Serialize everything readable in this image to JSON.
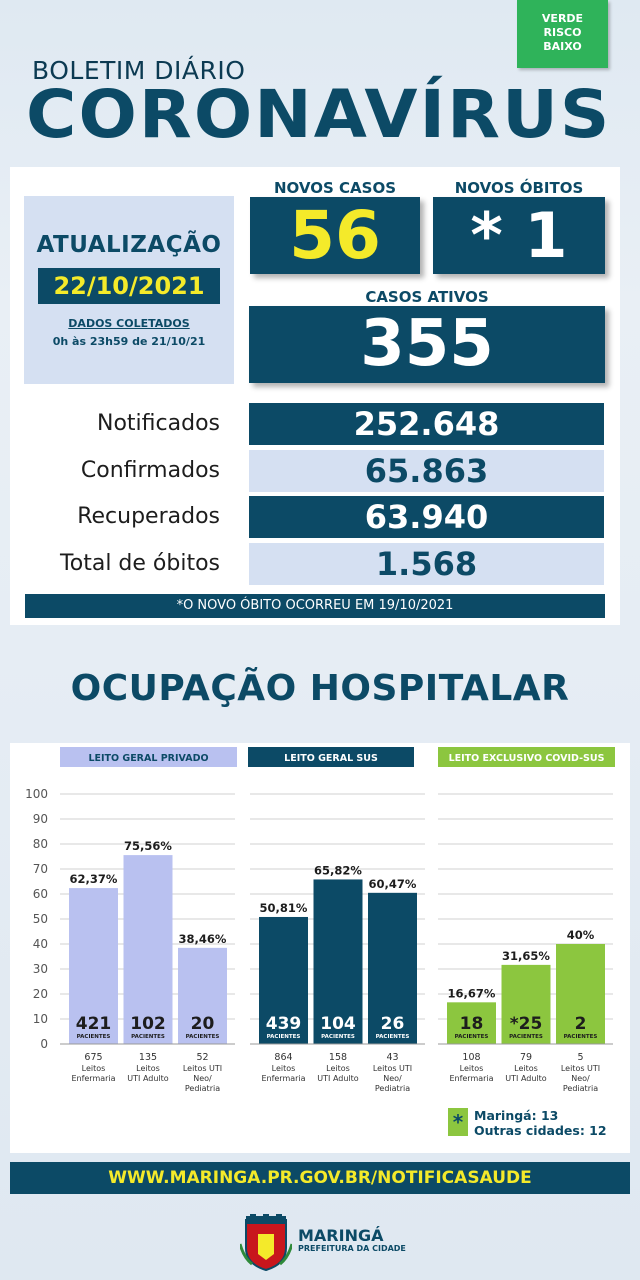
{
  "risk_badge": {
    "line1": "VERDE",
    "line2": "RISCO",
    "line3": "BAIXO"
  },
  "header": {
    "subtitle": "BOLETIM DIÁRIO",
    "title": "CORONAVÍRUS"
  },
  "update": {
    "title": "ATUALIZAÇÃO",
    "date": "22/10/2021",
    "collected_label": "DADOS COLETADOS",
    "collected_period": "0h às 23h59 de 21/10/21"
  },
  "new_cases": {
    "label": "NOVOS CASOS",
    "value": "56"
  },
  "new_deaths": {
    "label": "NOVOS ÓBITOS",
    "value": "* 1"
  },
  "active_cases": {
    "label": "CASOS ATIVOS",
    "value": "355"
  },
  "stats": [
    {
      "label": "Notificados",
      "value": "252.648"
    },
    {
      "label": "Confirmados",
      "value": "65.863"
    },
    {
      "label": "Recuperados",
      "value": "63.940"
    },
    {
      "label": "Total de óbitos",
      "value": "1.568"
    }
  ],
  "footnote": "*O NOVO ÓBITO OCORREU EM 19/10/2021",
  "section_title": "OCUPAÇÃO HOSPITALAR",
  "colors": {
    "dark": "#0c4a66",
    "private": "#b9c1f0",
    "covid": "#8cc63f",
    "yellow": "#f4ea2a"
  },
  "chart_data": {
    "type": "bar",
    "ylim": [
      0,
      100
    ],
    "yticks": [
      "0",
      "10",
      "20",
      "30",
      "40",
      "50",
      "60",
      "70",
      "80",
      "90",
      "100"
    ],
    "patients_unit": "PACIENTES",
    "groups": [
      {
        "name": "LEITO GERAL PRIVADO",
        "color": "#b9c1f0",
        "bars": [
          {
            "value": 62.37,
            "pct_label": "62,37%",
            "patients": "421",
            "beds": "675",
            "bed_type": "Leitos Enfermaria"
          },
          {
            "value": 75.56,
            "pct_label": "75,56%",
            "patients": "102",
            "beds": "135",
            "bed_type": "Leitos UTI Adulto"
          },
          {
            "value": 38.46,
            "pct_label": "38,46%",
            "patients": "20",
            "beds": "52",
            "bed_type": "Leitos UTI Neo/ Pediatria"
          }
        ]
      },
      {
        "name": "LEITO GERAL SUS",
        "color": "#0c4a66",
        "bars": [
          {
            "value": 50.81,
            "pct_label": "50,81%",
            "patients": "439",
            "beds": "864",
            "bed_type": "Leitos Enfermaria"
          },
          {
            "value": 65.82,
            "pct_label": "65,82%",
            "patients": "104",
            "beds": "158",
            "bed_type": "Leitos UTI Adulto"
          },
          {
            "value": 60.47,
            "pct_label": "60,47%",
            "patients": "26",
            "beds": "43",
            "bed_type": "Leitos UTI Neo/ Pediatria"
          }
        ]
      },
      {
        "name": "LEITO EXCLUSIVO COVID-SUS",
        "color": "#8cc63f",
        "bars": [
          {
            "value": 16.67,
            "pct_label": "16,67%",
            "patients": "18",
            "beds": "108",
            "bed_type": "Leitos Enfermaria"
          },
          {
            "value": 31.65,
            "pct_label": "31,65%",
            "patients": "*25",
            "beds": "79",
            "bed_type": "Leitos UTI Adulto"
          },
          {
            "value": 40,
            "pct_label": "40%",
            "patients": "2",
            "beds": "5",
            "bed_type": "Leitos UTI Neo/ Pediatria"
          }
        ]
      }
    ],
    "note": {
      "symbol": "*",
      "line1": "Maringá: 13",
      "line2": "Outras cidades: 12"
    }
  },
  "website": "WWW.MARINGA.PR.GOV.BR/NOTIFICASAUDE",
  "logo": {
    "name": "MARINGÁ",
    "subtitle": "PREFEITURA DA CIDADE"
  }
}
